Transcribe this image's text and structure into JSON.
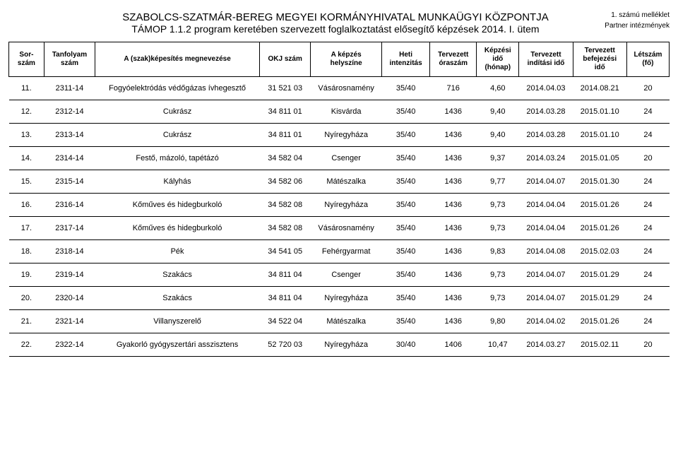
{
  "header": {
    "title_line1": "SZABOLCS-SZATMÁR-BEREG MEGYEI KORMÁNYHIVATAL MUNKAÜGYI KÖZPONTJA",
    "title_line2": "TÁMOP 1.1.2 program keretében szervezett foglalkoztatást elősegítő képzések 2014. I. ütem",
    "annex": "1. számú melléklet",
    "partner": "Partner intézmények"
  },
  "columns": [
    "Sor-\nszám",
    "Tanfolyam\nszám",
    "A (szak)képesítés megnevezése",
    "OKJ szám",
    "A képzés\nhelyszíne",
    "Heti\nintenzitás",
    "Tervezett\nóraszám",
    "Képzési\nidő\n(hónap)",
    "Tervezett\nindítási idő",
    "Tervezett\nbefejezési\nidő",
    "Létszám\n(fő)"
  ],
  "rows": [
    [
      "11.",
      "2311-14",
      "Fogyóelektródás védőgázas ívhegesztő",
      "31 521 03",
      "Vásárosnamény",
      "35/40",
      "716",
      "4,60",
      "2014.04.03",
      "2014.08.21",
      "20"
    ],
    [
      "12.",
      "2312-14",
      "Cukrász",
      "34 811 01",
      "Kisvárda",
      "35/40",
      "1436",
      "9,40",
      "2014.03.28",
      "2015.01.10",
      "24"
    ],
    [
      "13.",
      "2313-14",
      "Cukrász",
      "34 811 01",
      "Nyíregyháza",
      "35/40",
      "1436",
      "9,40",
      "2014.03.28",
      "2015.01.10",
      "24"
    ],
    [
      "14.",
      "2314-14",
      "Festő, mázoló, tapétázó",
      "34 582 04",
      "Csenger",
      "35/40",
      "1436",
      "9,37",
      "2014.03.24",
      "2015.01.05",
      "20"
    ],
    [
      "15.",
      "2315-14",
      "Kályhás",
      "34 582 06",
      "Mátészalka",
      "35/40",
      "1436",
      "9,77",
      "2014.04.07",
      "2015.01.30",
      "24"
    ],
    [
      "16.",
      "2316-14",
      "Kőműves és hidegburkoló",
      "34 582 08",
      "Nyíregyháza",
      "35/40",
      "1436",
      "9,73",
      "2014.04.04",
      "2015.01.26",
      "24"
    ],
    [
      "17.",
      "2317-14",
      "Kőműves és hidegburkoló",
      "34 582 08",
      "Vásárosnamény",
      "35/40",
      "1436",
      "9,73",
      "2014.04.04",
      "2015.01.26",
      "24"
    ],
    [
      "18.",
      "2318-14",
      "Pék",
      "34 541 05",
      "Fehérgyarmat",
      "35/40",
      "1436",
      "9,83",
      "2014.04.08",
      "2015.02.03",
      "24"
    ],
    [
      "19.",
      "2319-14",
      "Szakács",
      "34 811 04",
      "Csenger",
      "35/40",
      "1436",
      "9,73",
      "2014.04.07",
      "2015.01.29",
      "24"
    ],
    [
      "20.",
      "2320-14",
      "Szakács",
      "34 811 04",
      "Nyíregyháza",
      "35/40",
      "1436",
      "9,73",
      "2014.04.07",
      "2015.01.29",
      "24"
    ],
    [
      "21.",
      "2321-14",
      "Villanyszerelő",
      "34 522 04",
      "Mátészalka",
      "35/40",
      "1436",
      "9,80",
      "2014.04.02",
      "2015.01.26",
      "24"
    ],
    [
      "22.",
      "2322-14",
      "Gyakorló gyógyszertári asszisztens",
      "52 720 03",
      "Nyíregyháza",
      "30/40",
      "1406",
      "10,47",
      "2014.03.27",
      "2015.02.11",
      "20"
    ]
  ],
  "col_classes": [
    "col-sor",
    "col-tan",
    "col-name",
    "col-okj",
    "col-hely",
    "col-heti",
    "col-ora",
    "col-kepz",
    "col-ind",
    "col-bef",
    "col-let"
  ]
}
